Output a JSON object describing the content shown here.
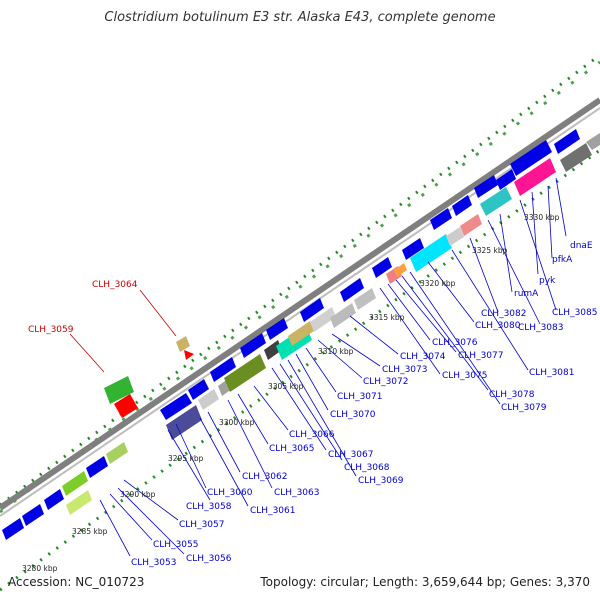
{
  "title": "Clostridium botulinum E3 str. Alaska E43, complete genome",
  "accession": "Accession: NC_010723",
  "summary": "Topology: circular; Length: 3,659,644 bp; Genes: 3,370",
  "colors": {
    "backbone": "#808080",
    "forward_gene": "#0000e6",
    "label": "#0000cc",
    "highlight_label": "#cc0000",
    "gc_dots": "#228b22"
  },
  "ticks": [
    "3280 kbp",
    "3285 kbp",
    "3290 kbp",
    "3295 kbp",
    "3300 kbp",
    "3305 kbp",
    "3310 kbp",
    "3315 kbp",
    "3320 kbp",
    "3325 kbp",
    "3330 kbp"
  ],
  "gene_labels": [
    "CLH_3053",
    "CLH_3055",
    "CLH_3056",
    "CLH_3057",
    "CLH_3058",
    "CLH_3060",
    "CLH_3061",
    "CLH_3062",
    "CLH_3063",
    "CLH_3065",
    "CLH_3066",
    "CLH_3067",
    "CLH_3068",
    "CLH_3069",
    "CLH_3070",
    "CLH_3071",
    "CLH_3072",
    "CLH_3073",
    "CLH_3074",
    "CLH_3075",
    "CLH_3076",
    "CLH_3077",
    "CLH_3078",
    "CLH_3079",
    "CLH_3080",
    "CLH_3081",
    "CLH_3082",
    "CLH_3083",
    "rumA",
    "CLH_3085",
    "pyk",
    "pfkA",
    "dnaE"
  ],
  "highlight_labels": [
    "CLH_3059",
    "CLH_3064"
  ]
}
